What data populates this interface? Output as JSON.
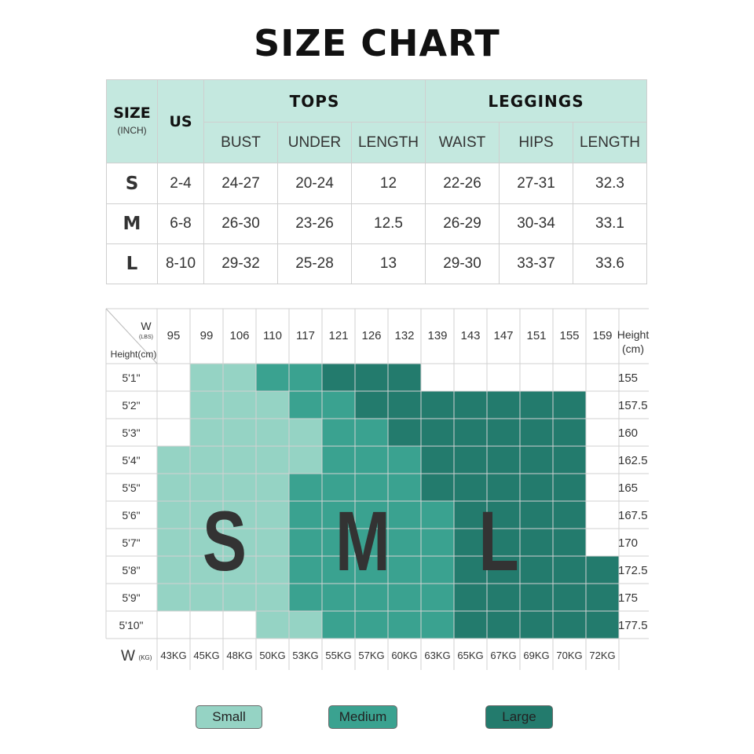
{
  "title": "SIZE CHART",
  "size_table": {
    "size_label": "SIZE",
    "size_unit": "(INCH)",
    "us_label": "US",
    "groups": [
      "TOPS",
      "LEGGINGS"
    ],
    "columns": [
      "BUST",
      "UNDER",
      "LENGTH",
      "WAISt",
      "HIPS",
      "LENGTH"
    ],
    "rows": [
      {
        "size": "S",
        "us": "2-4",
        "values": [
          "24-27",
          "20-24",
          "12",
          "22-26",
          "27-31",
          "32.3"
        ]
      },
      {
        "size": "M",
        "us": "6-8",
        "values": [
          "26-30",
          "23-26",
          "12.5",
          "26-29",
          "30-34",
          "33.1"
        ]
      },
      {
        "size": "L",
        "us": "8-10",
        "values": [
          "29-32",
          "25-28",
          "13",
          "29-30",
          "33-37",
          "33.6"
        ]
      }
    ]
  },
  "chart_data": {
    "type": "heatmap",
    "corner_w": "W",
    "corner_w_unit": "(LBS)",
    "corner_height": "Height(cm)",
    "weights_lbs": [
      "95",
      "99",
      "106",
      "110",
      "117",
      "121",
      "126",
      "132",
      "139",
      "143",
      "147",
      "151",
      "155",
      "159"
    ],
    "weights_kg": [
      "43KG",
      "45KG",
      "48KG",
      "50KG",
      "53KG",
      "55KG",
      "57KG",
      "60KG",
      "63KG",
      "65KG",
      "67KG",
      "69KG",
      "70KG",
      "72KG"
    ],
    "kg_axis_label": "W",
    "kg_axis_unit": "(KG)",
    "right_header": "Height\n(cm)",
    "heights_ft": [
      "5'1\"",
      "5'2\"",
      "5'3\"",
      "5'4\"",
      "5'5\"",
      "5'6\"",
      "5'7\"",
      "5'8\"",
      "5'9\"",
      "5'10\""
    ],
    "heights_cm": [
      "155",
      "157.5",
      "160",
      "162.5",
      "165",
      "167.5",
      "170",
      "172.5",
      "175",
      "177.5"
    ],
    "cells": [
      "01122333000000",
      "01112233333330",
      "01111223333330",
      "11111222333330",
      "11112222333330",
      "11112222233330",
      "11112222233330",
      "11112222233333",
      "11112222233333",
      "00011222233333"
    ],
    "region_labels": [
      "S",
      "M",
      "L"
    ],
    "colors": {
      "small": "#95d3c4",
      "medium": "#3aa290",
      "large": "#237b6d",
      "large_dark": "#1f6f63"
    },
    "legend": [
      "Small",
      "Medium",
      "Large"
    ]
  }
}
